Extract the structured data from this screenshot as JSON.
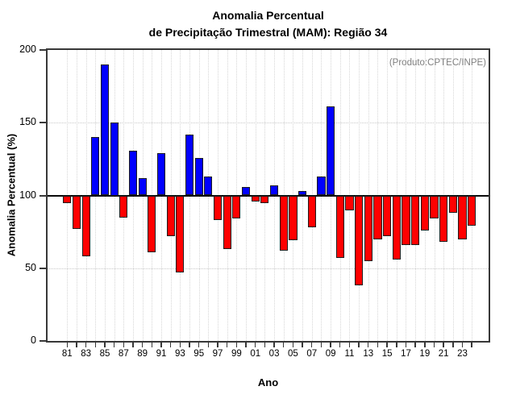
{
  "title": {
    "line1": "Anomalia Percentual",
    "line2": "de Precipitação Trimestral (MAM): Região 34"
  },
  "annotation": "(Produto:CPTEC/INPE)",
  "chart_data": {
    "type": "bar",
    "title": "Anomalia Percentual de Precipitação Trimestral (MAM): Região 34",
    "xlabel": "Ano",
    "ylabel": "Anomalia Percentual (%)",
    "ylim": [
      0,
      200
    ],
    "yticks": [
      0,
      50,
      100,
      150,
      200
    ],
    "baseline": 100,
    "grid_y_dotted": [
      50,
      150
    ],
    "legend_position": "none",
    "x_tick_labels": [
      "81",
      "83",
      "85",
      "87",
      "89",
      "91",
      "93",
      "95",
      "97",
      "99",
      "01",
      "03",
      "05",
      "07",
      "09",
      "11",
      "13",
      "15",
      "17",
      "19",
      "21",
      "23"
    ],
    "years": [
      1981,
      1982,
      1983,
      1984,
      1985,
      1986,
      1987,
      1988,
      1989,
      1990,
      1991,
      1992,
      1993,
      1994,
      1995,
      1996,
      1997,
      1998,
      1999,
      2000,
      2001,
      2002,
      2003,
      2004,
      2005,
      2006,
      2007,
      2008,
      2009,
      2010,
      2011,
      2012,
      2013,
      2014,
      2015,
      2016,
      2017,
      2018,
      2019,
      2020,
      2021,
      2022,
      2023,
      2024
    ],
    "values": [
      95,
      77,
      58,
      140,
      190,
      150,
      85,
      131,
      112,
      61,
      129,
      72,
      47,
      142,
      126,
      113,
      83,
      63,
      84,
      106,
      96,
      95,
      107,
      62,
      69,
      103,
      78,
      113,
      161,
      57,
      90,
      38,
      55,
      70,
      72,
      56,
      66,
      66,
      76,
      84,
      68,
      88,
      70,
      79
    ],
    "colors": {
      "above_baseline": "#0000ff",
      "below_baseline": "#ff0000",
      "bar_border": "#1c1c1c",
      "axis": "#383838",
      "grid": "#cccccc",
      "annotation_text": "#7f7f7f"
    }
  }
}
